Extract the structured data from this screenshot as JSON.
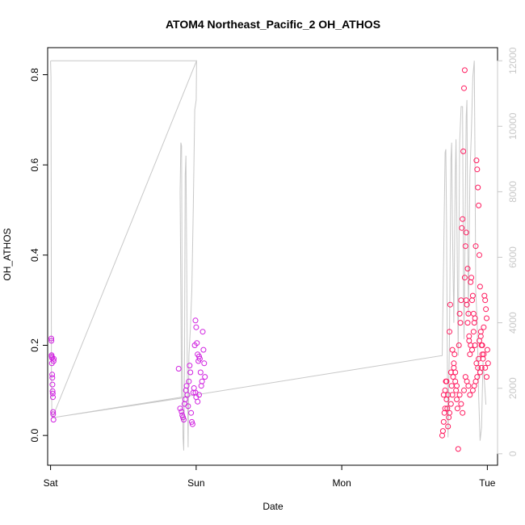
{
  "chart_data": {
    "type": "scatter",
    "title": "ATOM4 Northeast_Pacific_2 OH_ATHOS",
    "xlabel": "Date",
    "ylabel": "OH_ATHOS",
    "x_ticks": [
      "Sat",
      "Sun",
      "Mon",
      "Tue"
    ],
    "x_range_days": [
      -0.02,
      3.07
    ],
    "y_left": {
      "ticks": [
        "0.0",
        "0.2",
        "0.4",
        "0.6",
        "0.8"
      ],
      "range": [
        -0.066,
        0.86
      ]
    },
    "y_right": {
      "ticks": [
        "0",
        "2000",
        "4000",
        "6000",
        "8000",
        "10000",
        "12000"
      ],
      "range": [
        -350,
        12400
      ]
    },
    "grid": false,
    "legend": "none",
    "colors": {
      "points_early": "#d020e0",
      "points_late": "#ff1a5e",
      "altitude_line": "#c8c8c8",
      "axis": "#000000",
      "right_axis": "#c8c8c8"
    },
    "series": [
      {
        "axis": "left",
        "style": "points",
        "points": [
          [
            0.005,
            0.215
          ],
          [
            0.006,
            0.21
          ],
          [
            0.007,
            0.178
          ],
          [
            0.008,
            0.175
          ],
          [
            0.009,
            0.16
          ],
          [
            0.01,
            0.172
          ],
          [
            0.011,
            0.135
          ],
          [
            0.012,
            0.128
          ],
          [
            0.013,
            0.113
          ],
          [
            0.014,
            0.098
          ],
          [
            0.015,
            0.093
          ],
          [
            0.016,
            0.085
          ],
          [
            0.017,
            0.052
          ],
          [
            0.018,
            0.047
          ],
          [
            0.02,
            0.035
          ],
          [
            0.021,
            0.165
          ],
          [
            0.022,
            0.17
          ],
          [
            0.88,
            0.148
          ],
          [
            0.89,
            0.06
          ],
          [
            0.9,
            0.053
          ],
          [
            0.905,
            0.045
          ],
          [
            0.91,
            0.04
          ],
          [
            0.915,
            0.035
          ],
          [
            0.92,
            0.07
          ],
          [
            0.925,
            0.08
          ],
          [
            0.93,
            0.1
          ],
          [
            0.935,
            0.11
          ],
          [
            0.94,
            0.09
          ],
          [
            0.945,
            0.065
          ],
          [
            0.95,
            0.12
          ],
          [
            0.955,
            0.155
          ],
          [
            0.96,
            0.14
          ],
          [
            0.965,
            0.05
          ],
          [
            0.97,
            0.03
          ],
          [
            0.975,
            0.025
          ],
          [
            0.98,
            0.095
          ],
          [
            0.985,
            0.105
          ],
          [
            0.99,
            0.2
          ],
          [
            0.995,
            0.255
          ],
          [
            1.0,
            0.24
          ],
          [
            1.005,
            0.205
          ],
          [
            1.01,
            0.18
          ],
          [
            1.015,
            0.165
          ],
          [
            1.02,
            0.175
          ],
          [
            1.025,
            0.17
          ],
          [
            1.03,
            0.14
          ],
          [
            1.035,
            0.11
          ],
          [
            1.04,
            0.12
          ],
          [
            1.045,
            0.23
          ],
          [
            1.05,
            0.19
          ],
          [
            1.055,
            0.16
          ],
          [
            1.06,
            0.13
          ],
          [
            0.995,
            0.095
          ],
          [
            1.0,
            0.085
          ],
          [
            1.01,
            0.075
          ],
          [
            1.02,
            0.09
          ],
          [
            2.69,
            0.0
          ],
          [
            2.695,
            0.01
          ],
          [
            2.7,
            0.03
          ],
          [
            2.705,
            0.05
          ],
          [
            2.71,
            0.1
          ],
          [
            2.715,
            0.12
          ],
          [
            2.72,
            0.08
          ],
          [
            2.725,
            0.06
          ],
          [
            2.73,
            0.02
          ],
          [
            2.735,
            0.04
          ],
          [
            2.74,
            0.23
          ],
          [
            2.745,
            0.29
          ],
          [
            2.75,
            0.14
          ],
          [
            2.755,
            0.11
          ],
          [
            2.76,
            0.09
          ],
          [
            2.765,
            0.13
          ],
          [
            2.77,
            0.15
          ],
          [
            2.775,
            0.18
          ],
          [
            2.78,
            0.12
          ],
          [
            2.785,
            0.1
          ],
          [
            2.79,
            0.08
          ],
          [
            2.795,
            0.06
          ],
          [
            2.8,
            -0.03
          ],
          [
            2.805,
            0.2
          ],
          [
            2.81,
            0.27
          ],
          [
            2.815,
            0.25
          ],
          [
            2.82,
            0.3
          ],
          [
            2.825,
            0.46
          ],
          [
            2.83,
            0.48
          ],
          [
            2.835,
            0.63
          ],
          [
            2.84,
            0.77
          ],
          [
            2.845,
            0.81
          ],
          [
            2.85,
            0.42
          ],
          [
            2.855,
            0.45
          ],
          [
            2.86,
            0.29
          ],
          [
            2.865,
            0.25
          ],
          [
            2.87,
            0.27
          ],
          [
            2.875,
            0.22
          ],
          [
            2.88,
            0.18
          ],
          [
            2.885,
            0.34
          ],
          [
            2.89,
            0.35
          ],
          [
            2.895,
            0.3
          ],
          [
            2.9,
            0.31
          ],
          [
            2.905,
            0.23
          ],
          [
            2.91,
            0.25
          ],
          [
            2.915,
            0.26
          ],
          [
            2.92,
            0.42
          ],
          [
            2.925,
            0.61
          ],
          [
            2.93,
            0.59
          ],
          [
            2.935,
            0.55
          ],
          [
            2.94,
            0.51
          ],
          [
            2.945,
            0.4
          ],
          [
            2.95,
            0.33
          ],
          [
            2.955,
            0.22
          ],
          [
            2.96,
            0.2
          ],
          [
            2.965,
            0.18
          ],
          [
            2.97,
            0.17
          ],
          [
            2.975,
            0.24
          ],
          [
            2.98,
            0.31
          ],
          [
            2.985,
            0.3
          ],
          [
            2.99,
            0.28
          ],
          [
            2.995,
            0.26
          ],
          [
            3.0,
            0.19
          ],
          [
            3.005,
            0.16
          ],
          [
            2.96,
            0.15
          ],
          [
            2.95,
            0.14
          ],
          [
            2.94,
            0.17
          ],
          [
            2.93,
            0.13
          ],
          [
            2.92,
            0.12
          ],
          [
            2.91,
            0.11
          ],
          [
            2.9,
            0.1
          ],
          [
            2.88,
            0.09
          ],
          [
            2.87,
            0.11
          ],
          [
            2.86,
            0.12
          ],
          [
            2.85,
            0.13
          ],
          [
            2.84,
            0.1
          ],
          [
            2.83,
            0.05
          ],
          [
            2.82,
            0.07
          ],
          [
            2.81,
            0.09
          ],
          [
            2.79,
            0.11
          ],
          [
            2.78,
            0.14
          ],
          [
            2.77,
            0.16
          ],
          [
            2.76,
            0.19
          ],
          [
            2.75,
            0.07
          ],
          [
            2.74,
            0.05
          ],
          [
            2.73,
            0.09
          ],
          [
            2.72,
            0.12
          ],
          [
            2.71,
            0.06
          ],
          [
            2.7,
            0.09
          ],
          [
            2.845,
            0.35
          ],
          [
            2.855,
            0.3
          ],
          [
            2.865,
            0.37
          ],
          [
            2.875,
            0.21
          ],
          [
            2.885,
            0.2
          ],
          [
            2.895,
            0.19
          ],
          [
            2.905,
            0.27
          ],
          [
            2.915,
            0.2
          ],
          [
            2.925,
            0.16
          ],
          [
            2.935,
            0.15
          ],
          [
            2.945,
            0.21
          ],
          [
            2.955,
            0.23
          ],
          [
            2.965,
            0.2
          ],
          [
            2.975,
            0.18
          ],
          [
            2.985,
            0.15
          ],
          [
            2.995,
            0.13
          ]
        ]
      },
      {
        "axis": "right",
        "style": "line",
        "points": [
          [
            0.0,
            12000
          ],
          [
            0.003,
            11500
          ],
          [
            0.006,
            2500
          ],
          [
            0.009,
            1200
          ],
          [
            0.012,
            1100
          ],
          [
            0.9,
            1700
          ],
          [
            0.89,
            8000
          ],
          [
            0.895,
            9500
          ],
          [
            0.9,
            9400
          ],
          [
            0.905,
            3000
          ],
          [
            0.91,
            500
          ],
          [
            0.915,
            100
          ],
          [
            0.92,
            2500
          ],
          [
            0.925,
            8500
          ],
          [
            0.93,
            9100
          ],
          [
            0.935,
            6000
          ],
          [
            0.94,
            2200
          ],
          [
            0.945,
            200
          ],
          [
            0.95,
            3000
          ],
          [
            0.96,
            3800
          ],
          [
            0.97,
            5000
          ],
          [
            0.98,
            7500
          ],
          [
            0.99,
            10500
          ],
          [
            1.0,
            10800
          ],
          [
            1.003,
            12000
          ],
          [
            0.003,
            12000
          ],
          [
            1.003,
            12000
          ],
          [
            0.012,
            1100
          ],
          [
            2.69,
            3000
          ],
          [
            2.7,
            6000
          ],
          [
            2.71,
            9200
          ],
          [
            2.715,
            9300
          ],
          [
            2.72,
            7000
          ],
          [
            2.725,
            3000
          ],
          [
            2.73,
            500
          ],
          [
            2.74,
            3500
          ],
          [
            2.75,
            9000
          ],
          [
            2.755,
            9500
          ],
          [
            2.76,
            7000
          ],
          [
            2.77,
            4000
          ],
          [
            2.78,
            8500
          ],
          [
            2.785,
            9600
          ],
          [
            2.79,
            7500
          ],
          [
            2.8,
            3000
          ],
          [
            2.81,
            9500
          ],
          [
            2.82,
            10600
          ],
          [
            2.83,
            10600
          ],
          [
            2.835,
            6000
          ],
          [
            2.84,
            3500
          ],
          [
            2.85,
            8000
          ],
          [
            2.855,
            10300
          ],
          [
            2.86,
            10800
          ],
          [
            2.865,
            7000
          ],
          [
            2.87,
            4200
          ],
          [
            2.88,
            8500
          ],
          [
            2.89,
            9800
          ],
          [
            2.9,
            11500
          ],
          [
            2.91,
            12000
          ],
          [
            2.915,
            9000
          ],
          [
            2.92,
            5000
          ],
          [
            2.93,
            4000
          ],
          [
            2.94,
            1800
          ],
          [
            2.95,
            400
          ],
          [
            2.96,
            800
          ],
          [
            2.97,
            2800
          ],
          [
            2.98,
            2200
          ],
          [
            2.99,
            1500
          ]
        ]
      }
    ]
  }
}
